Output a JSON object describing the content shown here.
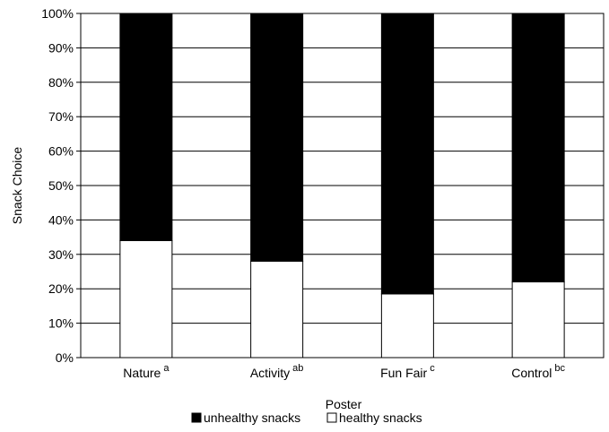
{
  "chart_data": {
    "type": "bar",
    "stacked": true,
    "xlabel": "Poster",
    "ylabel": "Snack Choice",
    "ylim": [
      0,
      100
    ],
    "yticks": [
      "0%",
      "10%",
      "20%",
      "30%",
      "40%",
      "50%",
      "60%",
      "70%",
      "80%",
      "90%",
      "100%"
    ],
    "categories": [
      {
        "label": "Nature",
        "superscript": "a"
      },
      {
        "label": "Activity",
        "superscript": "ab"
      },
      {
        "label": "Fun Fair",
        "superscript": "c"
      },
      {
        "label": "Control",
        "superscript": "bc"
      }
    ],
    "series": [
      {
        "name": "healthy snacks",
        "color": "#ffffff",
        "values": [
          34,
          28,
          18.5,
          22
        ]
      },
      {
        "name": "unhealthy snacks",
        "color": "#000000",
        "values": [
          66,
          72,
          81.5,
          78
        ]
      }
    ],
    "grid": true,
    "legend_position": "bottom",
    "legend": [
      "unhealthy snacks",
      "healthy snacks"
    ]
  }
}
